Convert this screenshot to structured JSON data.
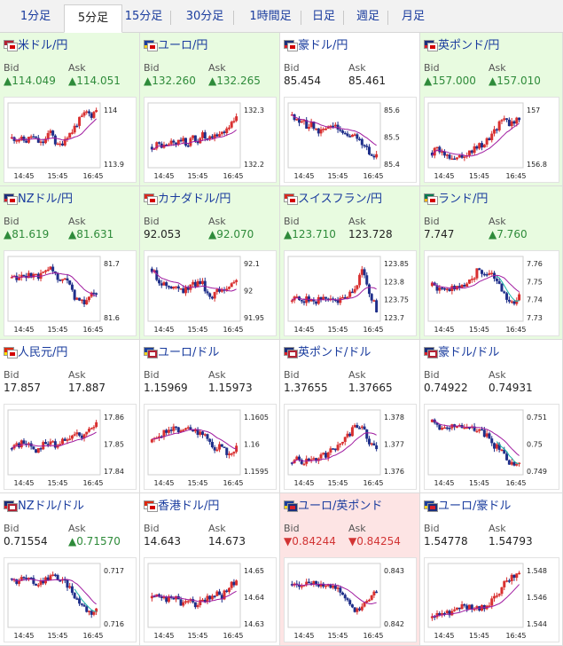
{
  "colors": {
    "up_candle": "#d93030",
    "down_candle": "#1f2f8a",
    "ma_line": "#a01ba0",
    "ma2_line": "#19b5a5",
    "price_up": "#2e8b3a",
    "price_down": "#d23434",
    "cell_up_bg": "#e8fbe0",
    "cell_down_bg": "#fde4e4"
  },
  "tabs": [
    {
      "label": "1分足",
      "active": false
    },
    {
      "label": "5分足",
      "active": true
    },
    {
      "label": "15分足",
      "active": false
    },
    {
      "label": "30分足",
      "active": false
    },
    {
      "label": "1時間足",
      "active": false
    },
    {
      "label": "日足",
      "active": false
    },
    {
      "label": "週足",
      "active": false
    },
    {
      "label": "月足",
      "active": false
    }
  ],
  "x_ticks": [
    "14:45",
    "15:45",
    "16:45"
  ],
  "pairs": [
    {
      "name": "米ドル/円",
      "flags": [
        "us-flag",
        "jp-flag"
      ],
      "trend": "up",
      "bid_label": "Bid",
      "ask_label": "Ask",
      "bid": "▲114.049",
      "ask": "▲114.051",
      "y_ticks": [
        "114",
        "113.9"
      ],
      "shape": [
        0.45,
        0.45,
        0.42,
        0.4,
        0.5,
        0.4,
        0.35,
        0.45,
        0.6,
        0.3,
        0.35,
        0.5,
        0.55,
        0.7,
        0.8,
        0.9,
        0.85,
        0.95
      ]
    },
    {
      "name": "ユーロ/円",
      "flags": [
        "eu-flag",
        "jp-flag"
      ],
      "trend": "up",
      "bid_label": "Bid",
      "ask_label": "Ask",
      "bid": "▲132.260",
      "ask": "▲132.265",
      "y_ticks": [
        "132.3",
        "132.2"
      ],
      "shape": [
        0.3,
        0.35,
        0.32,
        0.3,
        0.4,
        0.35,
        0.45,
        0.3,
        0.5,
        0.35,
        0.55,
        0.4,
        0.45,
        0.5,
        0.55,
        0.6,
        0.7,
        0.85
      ]
    },
    {
      "name": "豪ドル/円",
      "flags": [
        "au-flag",
        "jp-flag"
      ],
      "trend": "none",
      "bid_label": "Bid",
      "ask_label": "Ask",
      "bid": "85.454",
      "ask": "85.461",
      "y_ticks": [
        "85.6",
        "85.5",
        "85.4"
      ],
      "shape": [
        0.85,
        0.8,
        0.75,
        0.65,
        0.7,
        0.55,
        0.6,
        0.65,
        0.7,
        0.6,
        0.55,
        0.5,
        0.5,
        0.45,
        0.35,
        0.3,
        0.15,
        0.2
      ]
    },
    {
      "name": "英ポンド/円",
      "flags": [
        "uk-flag",
        "jp-flag"
      ],
      "trend": "up",
      "bid_label": "Bid",
      "ask_label": "Ask",
      "bid": "▲157.000",
      "ask": "▲157.010",
      "y_ticks": [
        "157",
        "156.8"
      ],
      "shape": [
        0.2,
        0.25,
        0.2,
        0.15,
        0.15,
        0.12,
        0.18,
        0.2,
        0.25,
        0.3,
        0.35,
        0.45,
        0.55,
        0.7,
        0.85,
        0.65,
        0.75,
        0.8
      ]
    },
    {
      "name": "NZドル/円",
      "flags": [
        "nz-flag",
        "jp-flag"
      ],
      "trend": "up",
      "bid_label": "Bid",
      "ask_label": "Ask",
      "bid": "▲81.619",
      "ask": "▲81.631",
      "y_ticks": [
        "81.7",
        "81.6"
      ],
      "shape": [
        0.7,
        0.65,
        0.7,
        0.75,
        0.72,
        0.7,
        0.8,
        0.75,
        0.85,
        0.7,
        0.6,
        0.65,
        0.45,
        0.3,
        0.25,
        0.3,
        0.4,
        0.45
      ]
    },
    {
      "name": "カナダドル/円",
      "flags": [
        "ca-flag",
        "jp-flag"
      ],
      "trend": "up",
      "bid_label": "Bid",
      "ask_label": "Ask",
      "bid": "92.053",
      "ask": "▲92.070",
      "y_ticks": [
        "92.1",
        "92",
        "91.95"
      ],
      "shape": [
        0.85,
        0.7,
        0.6,
        0.55,
        0.5,
        0.55,
        0.45,
        0.5,
        0.55,
        0.6,
        0.65,
        0.45,
        0.35,
        0.55,
        0.45,
        0.5,
        0.6,
        0.7
      ]
    },
    {
      "name": "スイスフラン/円",
      "flags": [
        "ch-flag",
        "jp-flag"
      ],
      "trend": "up",
      "bid_label": "Bid",
      "ask_label": "Ask",
      "bid": "▲123.710",
      "ask": "123.728",
      "y_ticks": [
        "123.85",
        "123.8",
        "123.75",
        "123.7"
      ],
      "shape": [
        0.3,
        0.35,
        0.3,
        0.32,
        0.28,
        0.3,
        0.35,
        0.3,
        0.32,
        0.3,
        0.35,
        0.4,
        0.45,
        0.55,
        0.85,
        0.6,
        0.35,
        0.15
      ]
    },
    {
      "name": "ランド/円",
      "flags": [
        "za-flag",
        "jp-flag"
      ],
      "trend": "up",
      "bid_label": "Bid",
      "ask_label": "Ask",
      "bid": "7.747",
      "ask": "▲7.760",
      "y_ticks": [
        "7.76",
        "7.75",
        "7.74",
        "7.73"
      ],
      "shape": [
        0.55,
        0.5,
        0.5,
        0.52,
        0.5,
        0.55,
        0.55,
        0.6,
        0.7,
        0.85,
        0.8,
        0.75,
        0.7,
        0.6,
        0.45,
        0.3,
        0.2,
        0.35
      ]
    },
    {
      "name": "人民元/円",
      "flags": [
        "cn-flag",
        "jp-flag"
      ],
      "trend": "none",
      "bid_label": "Bid",
      "ask_label": "Ask",
      "bid": "17.857",
      "ask": "17.887",
      "y_ticks": [
        "17.86",
        "17.85",
        "17.84"
      ],
      "shape": [
        0.4,
        0.45,
        0.5,
        0.42,
        0.48,
        0.35,
        0.45,
        0.5,
        0.55,
        0.4,
        0.5,
        0.55,
        0.6,
        0.65,
        0.6,
        0.7,
        0.75,
        0.8
      ]
    },
    {
      "name": "ユーロ/ドル",
      "flags": [
        "eu-flag",
        "us-flag"
      ],
      "trend": "none",
      "bid_label": "Bid",
      "ask_label": "Ask",
      "bid": "1.15969",
      "ask": "1.15973",
      "y_ticks": [
        "1.1605",
        "1.16",
        "1.1595"
      ],
      "shape": [
        0.5,
        0.6,
        0.65,
        0.7,
        0.72,
        0.75,
        0.7,
        0.8,
        0.75,
        0.7,
        0.6,
        0.65,
        0.4,
        0.3,
        0.5,
        0.3,
        0.35,
        0.4
      ]
    },
    {
      "name": "英ポンド/ドル",
      "flags": [
        "uk-flag",
        "us-flag"
      ],
      "trend": "none",
      "bid_label": "Bid",
      "ask_label": "Ask",
      "bid": "1.37655",
      "ask": "1.37665",
      "y_ticks": [
        "1.378",
        "1.377",
        "1.376"
      ],
      "shape": [
        0.15,
        0.2,
        0.15,
        0.2,
        0.2,
        0.22,
        0.25,
        0.3,
        0.35,
        0.45,
        0.5,
        0.6,
        0.7,
        0.8,
        0.75,
        0.6,
        0.45,
        0.35
      ]
    },
    {
      "name": "豪ドル/ドル",
      "flags": [
        "au-flag",
        "us-flag"
      ],
      "trend": "none",
      "bid_label": "Bid",
      "ask_label": "Ask",
      "bid": "0.74922",
      "ask": "0.74931",
      "y_ticks": [
        "0.751",
        "0.75",
        "0.749"
      ],
      "shape": [
        0.85,
        0.8,
        0.75,
        0.8,
        0.78,
        0.75,
        0.78,
        0.7,
        0.75,
        0.7,
        0.65,
        0.6,
        0.45,
        0.4,
        0.3,
        0.15,
        0.1,
        0.12
      ]
    },
    {
      "name": "NZドル/ドル",
      "flags": [
        "nz-flag",
        "us-flag"
      ],
      "trend": "none",
      "bid_label": "Bid",
      "ask_label": "Ask",
      "bid": "0.71554",
      "ask": "▲0.71570",
      "y_ticks": [
        "0.717",
        "0.716"
      ],
      "shape": [
        0.8,
        0.75,
        0.8,
        0.78,
        0.75,
        0.7,
        0.75,
        0.8,
        0.85,
        0.82,
        0.75,
        0.7,
        0.6,
        0.45,
        0.35,
        0.25,
        0.2,
        0.25
      ]
    },
    {
      "name": "香港ドル/円",
      "flags": [
        "hk-flag",
        "jp-flag"
      ],
      "trend": "none",
      "bid_label": "Bid",
      "ask_label": "Ask",
      "bid": "14.643",
      "ask": "14.673",
      "y_ticks": [
        "14.65",
        "14.64",
        "14.63"
      ],
      "shape": [
        0.45,
        0.5,
        0.4,
        0.45,
        0.5,
        0.45,
        0.35,
        0.4,
        0.45,
        0.3,
        0.4,
        0.45,
        0.5,
        0.55,
        0.45,
        0.6,
        0.7,
        0.75
      ]
    },
    {
      "name": "ユーロ/英ポンド",
      "flags": [
        "eu-flag",
        "uk-flag"
      ],
      "trend": "down",
      "bid_label": "Bid",
      "ask_label": "Ask",
      "bid": "▼0.84244",
      "ask": "▼0.84254",
      "y_ticks": [
        "0.843",
        "0.842"
      ],
      "shape": [
        0.7,
        0.72,
        0.7,
        0.75,
        0.7,
        0.72,
        0.7,
        0.68,
        0.65,
        0.6,
        0.55,
        0.45,
        0.3,
        0.2,
        0.35,
        0.45,
        0.5,
        0.55
      ]
    },
    {
      "name": "ユーロ/豪ドル",
      "flags": [
        "eu-flag",
        "au-flag"
      ],
      "trend": "none",
      "bid_label": "Bid",
      "ask_label": "Ask",
      "bid": "1.54778",
      "ask": "1.54793",
      "y_ticks": [
        "1.548",
        "1.546",
        "1.544"
      ],
      "shape": [
        0.1,
        0.15,
        0.2,
        0.18,
        0.22,
        0.25,
        0.3,
        0.28,
        0.3,
        0.25,
        0.3,
        0.35,
        0.45,
        0.55,
        0.7,
        0.8,
        0.85,
        0.9
      ]
    }
  ]
}
